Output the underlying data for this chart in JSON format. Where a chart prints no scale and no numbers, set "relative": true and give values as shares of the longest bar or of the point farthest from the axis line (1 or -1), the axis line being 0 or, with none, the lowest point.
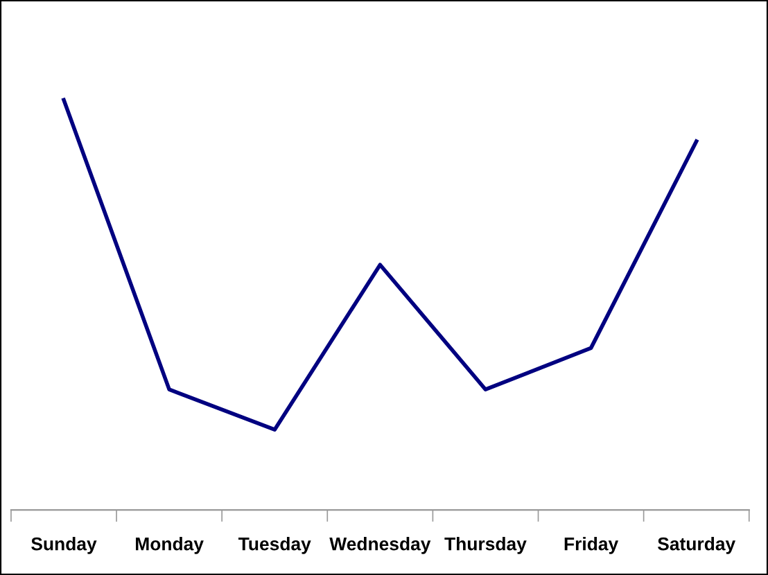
{
  "chart_data": {
    "type": "line",
    "relative": true,
    "categories": [
      "Sunday",
      "Monday",
      "Tuesday",
      "Wednesday",
      "Thursday",
      "Friday",
      "Saturday"
    ],
    "series": [
      {
        "color": "#000080",
        "values": [
          1,
          0.294,
          0.196,
          0.598,
          0.294,
          0.395,
          0.899
        ]
      }
    ],
    "marker": "none",
    "line_style": "solid",
    "grid": false,
    "legend": false
  }
}
